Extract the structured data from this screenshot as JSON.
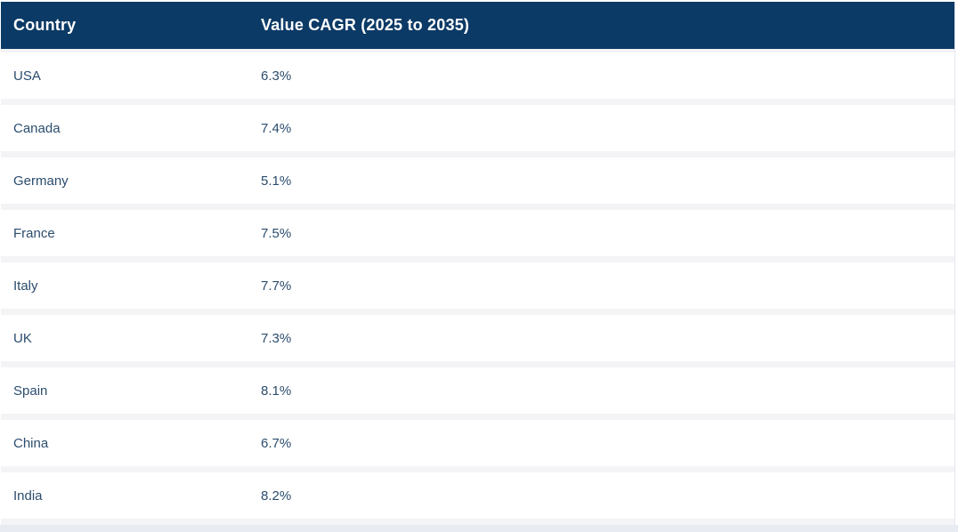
{
  "table": {
    "columns": [
      "Country",
      "Value CAGR (2025 to 2035)"
    ],
    "rows": [
      {
        "country": "USA",
        "value": "6.3%"
      },
      {
        "country": "Canada",
        "value": "7.4%"
      },
      {
        "country": "Germany",
        "value": "5.1%"
      },
      {
        "country": "France",
        "value": "7.5%"
      },
      {
        "country": "Italy",
        "value": "7.7%"
      },
      {
        "country": "UK",
        "value": "7.3%"
      },
      {
        "country": "Spain",
        "value": "8.1%"
      },
      {
        "country": "China",
        "value": "6.7%"
      },
      {
        "country": "India",
        "value": "8.2%"
      }
    ]
  },
  "chart_data": {
    "type": "table",
    "title": "Value CAGR (2025 to 2035)",
    "categories": [
      "USA",
      "Canada",
      "Germany",
      "France",
      "Italy",
      "UK",
      "Spain",
      "China",
      "India"
    ],
    "values": [
      6.3,
      7.4,
      5.1,
      7.5,
      7.7,
      7.3,
      8.1,
      6.7,
      8.2
    ],
    "unit": "%"
  },
  "colors": {
    "header_bg": "#0c3a66",
    "header_text": "#ffffff",
    "cell_text": "#2b4c6d",
    "row_bg": "#ffffff",
    "separator": "#f4f4f6",
    "footer_band": "#e9ebf2"
  }
}
